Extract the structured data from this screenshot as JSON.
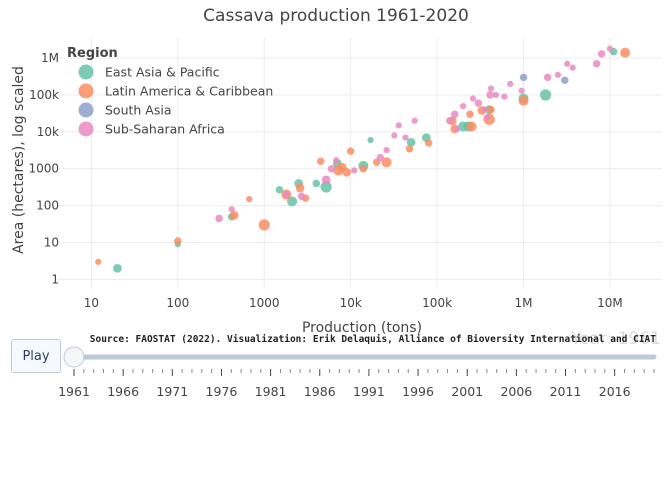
{
  "chart_data": {
    "type": "scatter",
    "title": "Cassava production 1961-2020",
    "xlabel": "Production (tons)",
    "ylabel": "Area (hectares), log scaled",
    "xscale": "log",
    "yscale": "log",
    "xlim": [
      4,
      40000000
    ],
    "ylim": [
      0.55,
      3500000
    ],
    "xticks": [
      {
        "value": 10,
        "label": "10"
      },
      {
        "value": 100,
        "label": "100"
      },
      {
        "value": 1000,
        "label": "1000"
      },
      {
        "value": 10000,
        "label": "10k"
      },
      {
        "value": 100000,
        "label": "100k"
      },
      {
        "value": 1000000,
        "label": "1M"
      },
      {
        "value": 10000000,
        "label": "10M"
      }
    ],
    "yticks": [
      {
        "value": 1,
        "label": "1"
      },
      {
        "value": 10,
        "label": "10"
      },
      {
        "value": 100,
        "label": "100"
      },
      {
        "value": 1000,
        "label": "1000"
      },
      {
        "value": 10000,
        "label": "10k"
      },
      {
        "value": 100000,
        "label": "100k"
      },
      {
        "value": 1000000,
        "label": "1M"
      }
    ],
    "grid": true,
    "legend": {
      "title": "Region",
      "position": "top-left"
    },
    "series": [
      {
        "name": "East Asia & Pacific",
        "color": "#66c2a5",
        "points": [
          [
            20,
            2,
            7
          ],
          [
            100,
            9,
            5
          ],
          [
            420,
            50,
            6
          ],
          [
            1500,
            270,
            6
          ],
          [
            2100,
            130,
            8
          ],
          [
            2500,
            400,
            7
          ],
          [
            4000,
            400,
            6
          ],
          [
            5200,
            320,
            9
          ],
          [
            7000,
            1400,
            7
          ],
          [
            14000,
            1200,
            8
          ],
          [
            17000,
            6000,
            5
          ],
          [
            50000,
            5200,
            7
          ],
          [
            75000,
            7000,
            7
          ],
          [
            200000,
            14000,
            8
          ],
          [
            230000,
            14000,
            8
          ],
          [
            400000,
            40000,
            7
          ],
          [
            1000000,
            80000,
            8
          ],
          [
            1800000,
            100000,
            9
          ],
          [
            11000000,
            1500000,
            6
          ]
        ]
      },
      {
        "name": "Latin America & Caribbean",
        "color": "#fc8d62",
        "points": [
          [
            12,
            3,
            5
          ],
          [
            100,
            11,
            6
          ],
          [
            450,
            55,
            7
          ],
          [
            670,
            150,
            5
          ],
          [
            1000,
            30,
            9
          ],
          [
            1800,
            200,
            8
          ],
          [
            2600,
            300,
            7
          ],
          [
            3000,
            160,
            6
          ],
          [
            4500,
            1600,
            6
          ],
          [
            7200,
            900,
            8
          ],
          [
            8000,
            1100,
            7
          ],
          [
            9000,
            800,
            7
          ],
          [
            10000,
            3000,
            6
          ],
          [
            14000,
            1000,
            6
          ],
          [
            20000,
            1500,
            6
          ],
          [
            26000,
            1500,
            8
          ],
          [
            48000,
            3500,
            6
          ],
          [
            80000,
            5000,
            6
          ],
          [
            150000,
            20000,
            7
          ],
          [
            160000,
            12000,
            7
          ],
          [
            240000,
            30000,
            6
          ],
          [
            250000,
            14000,
            8
          ],
          [
            330000,
            38000,
            7
          ],
          [
            400000,
            22000,
            9
          ],
          [
            420000,
            40000,
            6
          ],
          [
            1000000,
            70000,
            8
          ],
          [
            15000000,
            1400000,
            8
          ]
        ]
      },
      {
        "name": "South Asia",
        "color": "#8da0cb",
        "points": [
          [
            1000000,
            300000,
            6
          ],
          [
            3000000,
            250000,
            6
          ]
        ]
      },
      {
        "name": "Sub-Saharan Africa",
        "color": "#e78ac3",
        "points": [
          [
            300,
            45,
            6
          ],
          [
            420,
            80,
            5
          ],
          [
            1800,
            200,
            6
          ],
          [
            2700,
            180,
            6
          ],
          [
            5200,
            500,
            7
          ],
          [
            6000,
            1000,
            6
          ],
          [
            6800,
            1700,
            5
          ],
          [
            11000,
            900,
            5
          ],
          [
            22000,
            2000,
            6
          ],
          [
            26000,
            3200,
            5
          ],
          [
            32000,
            8000,
            5
          ],
          [
            36000,
            15000,
            5
          ],
          [
            43000,
            7000,
            5
          ],
          [
            55000,
            20000,
            5
          ],
          [
            140000,
            20000,
            6
          ],
          [
            160000,
            30000,
            6
          ],
          [
            170000,
            12000,
            5
          ],
          [
            200000,
            50000,
            5
          ],
          [
            260000,
            80000,
            5
          ],
          [
            300000,
            60000,
            6
          ],
          [
            350000,
            40000,
            5
          ],
          [
            380000,
            25000,
            5
          ],
          [
            410000,
            100000,
            6
          ],
          [
            420000,
            150000,
            5
          ],
          [
            480000,
            100000,
            5
          ],
          [
            600000,
            90000,
            5
          ],
          [
            700000,
            200000,
            5
          ],
          [
            950000,
            130000,
            5
          ],
          [
            1900000,
            300000,
            6
          ],
          [
            2500000,
            350000,
            5
          ],
          [
            3200000,
            700000,
            5
          ],
          [
            3700000,
            550000,
            5
          ],
          [
            7000000,
            700000,
            6
          ],
          [
            8000000,
            1300000,
            6
          ],
          [
            10000000,
            1800000,
            5
          ]
        ]
      }
    ]
  },
  "source": "Source: FAOSTAT (2022). Visualization: Erik Delaquis, Alliance of Bioversity International and CIAT",
  "year_watermark": "Year: 1961",
  "controls": {
    "play_label": "Play",
    "slider_labels": [
      "1961",
      "1966",
      "1971",
      "1976",
      "1981",
      "1986",
      "1991",
      "1996",
      "2001",
      "2006",
      "2011",
      "2016"
    ],
    "slider_first_year": 1961,
    "slider_last_year": 2020,
    "current_year": 1961
  }
}
